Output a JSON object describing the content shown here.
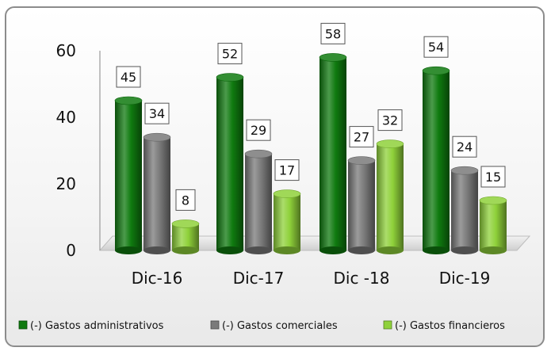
{
  "chart_data": {
    "type": "bar",
    "categories": [
      "Dic-16",
      "Dic-17",
      "Dic -18",
      "Dic-19"
    ],
    "series": [
      {
        "name": "(-) Gastos administrativos",
        "values": [
          45,
          52,
          58,
          54
        ],
        "color": "#0f7a0f"
      },
      {
        "name": "(-) Gastos comerciales",
        "values": [
          34,
          29,
          27,
          24
        ],
        "color": "#7a7a7a"
      },
      {
        "name": "(-) Gastos financieros",
        "values": [
          8,
          17,
          32,
          15
        ],
        "color": "#8fd13a"
      }
    ],
    "data_labels": [
      [
        "45",
        "52",
        "58",
        "54"
      ],
      [
        "34",
        "29",
        "27",
        "24"
      ],
      [
        "8",
        "17",
        "32",
        "15"
      ]
    ],
    "y_ticks": [
      "0",
      "20",
      "40",
      "60"
    ],
    "ylim": [
      0,
      60
    ],
    "grid": false,
    "legend_position": "bottom",
    "style": "3d-cylinder"
  }
}
